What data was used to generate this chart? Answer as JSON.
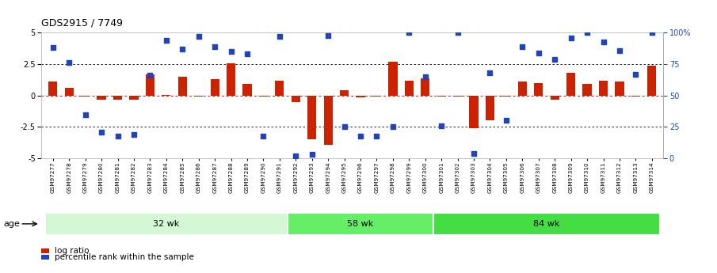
{
  "title": "GDS2915 / 7749",
  "samples": [
    "GSM97277",
    "GSM97278",
    "GSM97279",
    "GSM97280",
    "GSM97281",
    "GSM97282",
    "GSM97283",
    "GSM97284",
    "GSM97285",
    "GSM97286",
    "GSM97287",
    "GSM97288",
    "GSM97289",
    "GSM97290",
    "GSM97291",
    "GSM97292",
    "GSM97293",
    "GSM97294",
    "GSM97295",
    "GSM97296",
    "GSM97297",
    "GSM97298",
    "GSM97299",
    "GSM97300",
    "GSM97301",
    "GSM97302",
    "GSM97303",
    "GSM97304",
    "GSM97305",
    "GSM97306",
    "GSM97307",
    "GSM97308",
    "GSM97309",
    "GSM97310",
    "GSM97311",
    "GSM97312",
    "GSM97313",
    "GSM97314"
  ],
  "log_ratio": [
    1.1,
    0.6,
    -0.05,
    -0.3,
    -0.3,
    -0.35,
    1.7,
    0.05,
    1.5,
    -0.1,
    1.3,
    2.55,
    0.9,
    -0.1,
    1.2,
    -0.5,
    -3.5,
    -3.9,
    0.4,
    -0.15,
    -0.1,
    2.7,
    1.2,
    1.4,
    -0.05,
    -0.05,
    -2.6,
    -2.0,
    -0.1,
    1.1,
    1.0,
    -0.3,
    1.8,
    0.9,
    1.2,
    1.1,
    -0.1,
    2.4
  ],
  "percentile": [
    3.8,
    2.6,
    -1.5,
    -2.9,
    -3.2,
    -3.1,
    1.6,
    4.4,
    3.7,
    4.7,
    3.9,
    3.5,
    3.3,
    -3.2,
    4.7,
    -4.8,
    -4.7,
    4.8,
    -2.5,
    -3.2,
    -3.2,
    -2.5,
    5.0,
    1.5,
    -2.4,
    5.0,
    -4.6,
    1.8,
    -2.0,
    3.9,
    3.4,
    2.9,
    4.6,
    5.0,
    4.3,
    3.6,
    1.7,
    5.0
  ],
  "groups": [
    {
      "label": "32 wk",
      "start": 0,
      "end": 15,
      "color": "#d4f7d4"
    },
    {
      "label": "58 wk",
      "start": 15,
      "end": 24,
      "color": "#66ee66"
    },
    {
      "label": "84 wk",
      "start": 24,
      "end": 38,
      "color": "#44dd44"
    }
  ],
  "ylim": [
    -5,
    5
  ],
  "yticks": [
    -5,
    -2.5,
    0,
    2.5,
    5
  ],
  "yticks_right_labels": [
    "0",
    "25",
    "50",
    "75",
    "100%"
  ],
  "bar_color": "#cc2200",
  "dot_color": "#2244bb",
  "age_label": "age"
}
